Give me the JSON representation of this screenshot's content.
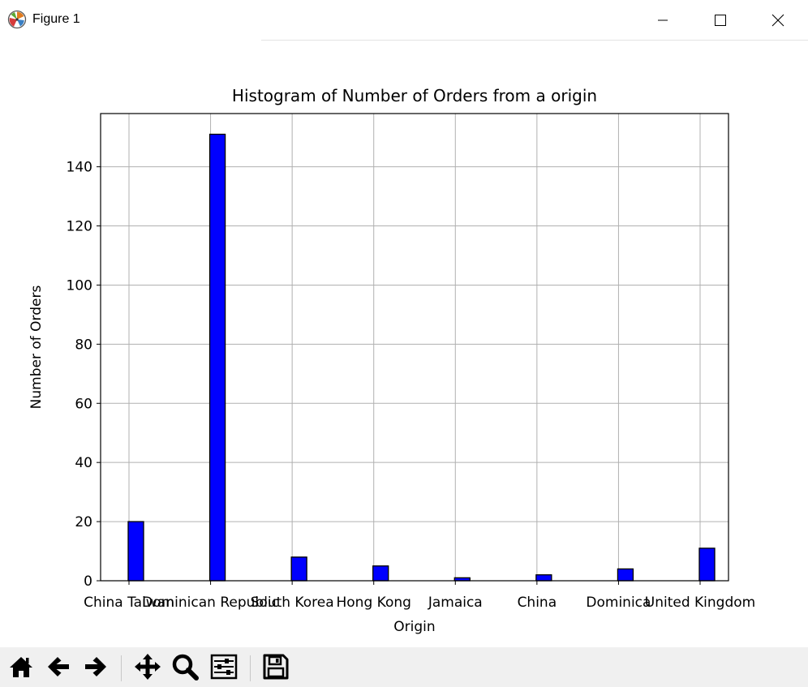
{
  "window": {
    "title": "Figure 1",
    "icons": {
      "app": "matplotlib-icon",
      "minimize": "minimize-icon",
      "maximize": "maximize-icon",
      "close": "close-icon"
    }
  },
  "toolbar": {
    "buttons": [
      {
        "name": "home-button",
        "icon": "home-icon"
      },
      {
        "name": "back-button",
        "icon": "arrow-left-icon"
      },
      {
        "name": "forward-button",
        "icon": "arrow-right-icon"
      },
      {
        "name": "pan-button",
        "icon": "move-icon"
      },
      {
        "name": "zoom-button",
        "icon": "magnifier-icon"
      },
      {
        "name": "configure-subplots-button",
        "icon": "sliders-icon"
      },
      {
        "name": "save-button",
        "icon": "floppy-disk-icon"
      }
    ]
  },
  "chart_data": {
    "type": "bar",
    "title": "Histogram of Number of Orders from a origin",
    "xlabel": "Origin",
    "ylabel": "Number of Orders",
    "categories": [
      "China Taiwan",
      "Dominican Republic",
      "South Korea",
      "Hong Kong",
      "Jamaica",
      "China",
      "Dominica",
      "United Kingdom"
    ],
    "values": [
      20,
      151,
      8,
      5,
      1,
      2,
      4,
      11
    ],
    "yticks": [
      0,
      20,
      40,
      60,
      80,
      100,
      120,
      140
    ],
    "ylim": [
      0,
      158
    ],
    "grid": true,
    "bar_color": "#0000ff",
    "edge_color": "#000000"
  }
}
